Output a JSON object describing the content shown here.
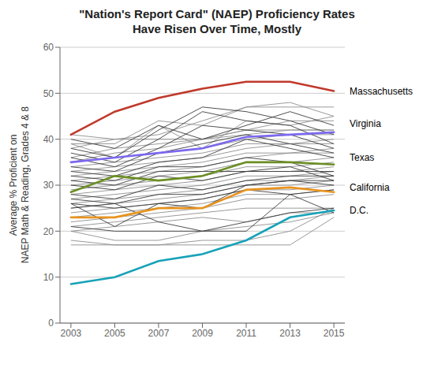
{
  "chart_data": {
    "type": "line",
    "title": "\"Nation's Report Card\" (NAEP) Proficiency Rates\nHave Risen Over Time, Mostly",
    "y_label": "Average % Proficient on\nNAEP Math & Reading, Grades 4 & 8",
    "x": [
      2003,
      2005,
      2007,
      2009,
      2011,
      2013,
      2015
    ],
    "xlim": [
      2002.5,
      2015.5
    ],
    "xticks": [
      2003,
      2005,
      2007,
      2009,
      2011,
      2013,
      2015
    ],
    "ylim": [
      0,
      60
    ],
    "yticks": [
      0,
      10,
      20,
      30,
      40,
      50,
      60
    ],
    "grid": true,
    "series": [
      {
        "color": "#888888",
        "values": [
          41,
          40,
          40,
          40,
          42,
          42,
          42
        ]
      },
      {
        "color": "#888888",
        "values": [
          39,
          39,
          44,
          43,
          47,
          47,
          47
        ]
      },
      {
        "color": "#888888",
        "values": [
          38,
          40,
          41,
          44,
          47,
          48,
          45
        ]
      },
      {
        "color": "#888888",
        "values": [
          39,
          36,
          43,
          38,
          44,
          43,
          45
        ]
      },
      {
        "color": "#888888",
        "values": [
          36,
          38,
          39,
          40,
          42,
          44,
          44
        ]
      },
      {
        "color": "#888888",
        "values": [
          35,
          37,
          38,
          40,
          41,
          42,
          42
        ]
      },
      {
        "color": "#888888",
        "values": [
          35,
          36,
          37,
          38,
          40,
          41,
          41
        ]
      },
      {
        "color": "#888888",
        "values": [
          34,
          35,
          36,
          37,
          39,
          39,
          40
        ]
      },
      {
        "color": "#888888",
        "values": [
          33,
          34,
          35,
          36,
          38,
          39,
          39
        ]
      },
      {
        "color": "#888888",
        "values": [
          32,
          33,
          34,
          35,
          37,
          37,
          38
        ]
      },
      {
        "color": "#888888",
        "values": [
          31,
          32,
          33,
          34,
          36,
          37,
          37
        ]
      },
      {
        "color": "#888888",
        "values": [
          30,
          31,
          32,
          33,
          35,
          35,
          36
        ]
      },
      {
        "color": "#888888",
        "values": [
          29,
          30,
          31,
          32,
          34,
          34,
          35
        ]
      },
      {
        "color": "#888888",
        "values": [
          28,
          29,
          30,
          31,
          33,
          33,
          34
        ]
      },
      {
        "color": "#888888",
        "values": [
          27,
          28,
          29,
          30,
          32,
          32,
          33
        ]
      },
      {
        "color": "#888888",
        "values": [
          26,
          27,
          28,
          29,
          31,
          31,
          32
        ]
      },
      {
        "color": "#888888",
        "values": [
          25,
          26,
          27,
          28,
          30,
          30,
          31
        ]
      },
      {
        "color": "#888888",
        "values": [
          24,
          25,
          26,
          27,
          29,
          29,
          30
        ]
      },
      {
        "color": "#888888",
        "values": [
          23,
          24,
          25,
          26,
          28,
          28,
          29
        ]
      },
      {
        "color": "#888888",
        "values": [
          22,
          23,
          24,
          25,
          27,
          27,
          28
        ]
      },
      {
        "color": "#888888",
        "values": [
          21,
          22,
          23,
          24,
          25,
          25,
          25
        ]
      },
      {
        "color": "#888888",
        "values": [
          20,
          21,
          22,
          23,
          22,
          24,
          24
        ]
      },
      {
        "color": "#888888",
        "values": [
          20,
          18,
          18,
          20,
          21,
          22,
          24
        ]
      },
      {
        "color": "#888888",
        "values": [
          18,
          17,
          17,
          18,
          18,
          20,
          25
        ]
      },
      {
        "color": "#888888",
        "values": [
          17,
          17,
          17,
          17,
          17,
          17,
          23
        ]
      },
      {
        "color": "#333333",
        "values": [
          21,
          20,
          20,
          20,
          20,
          28,
          24
        ]
      },
      {
        "color": "#333333",
        "values": [
          25,
          26,
          22,
          20,
          22,
          24,
          25
        ]
      },
      {
        "color": "#333333",
        "values": [
          26,
          21,
          26,
          25,
          30,
          31,
          31
        ]
      },
      {
        "color": "#333333",
        "values": [
          26,
          25,
          26,
          27,
          29,
          28,
          29
        ]
      },
      {
        "color": "#333333",
        "values": [
          27,
          26,
          28,
          28,
          30,
          31,
          30
        ]
      },
      {
        "color": "#333333",
        "values": [
          28,
          27,
          30,
          29,
          31,
          32,
          32
        ]
      },
      {
        "color": "#333333",
        "values": [
          30,
          29,
          32,
          31,
          33,
          33,
          33
        ]
      },
      {
        "color": "#333333",
        "values": [
          31,
          30,
          33,
          33,
          33,
          34,
          31
        ]
      },
      {
        "color": "#333333",
        "values": [
          32,
          31,
          34,
          34,
          36,
          35,
          32
        ]
      },
      {
        "color": "#333333",
        "values": [
          33,
          32,
          35,
          36,
          40,
          38,
          36
        ]
      },
      {
        "color": "#333333",
        "values": [
          34,
          33,
          37,
          39,
          41,
          39,
          37
        ]
      },
      {
        "color": "#333333",
        "values": [
          36,
          34,
          38,
          43,
          42,
          41,
          38
        ]
      },
      {
        "color": "#333333",
        "values": [
          37,
          35,
          40,
          46,
          44,
          43,
          39
        ]
      },
      {
        "color": "#333333",
        "values": [
          38,
          36,
          42,
          47,
          46,
          44,
          41
        ]
      },
      {
        "color": "#333333",
        "values": [
          40,
          38,
          43,
          40,
          43,
          46,
          43
        ]
      },
      {
        "name": "Massachusetts",
        "color": "#c0392b",
        "values": [
          41,
          46,
          49,
          51,
          52.5,
          52.5,
          50.5
        ],
        "label_y": 50.5
      },
      {
        "name": "Virginia",
        "color": "#7b68ee",
        "values": [
          35,
          36,
          37,
          38,
          40.5,
          41,
          41.5
        ],
        "label_y": 43.5
      },
      {
        "name": "Texas",
        "color": "#6b8e23",
        "values": [
          28.5,
          32,
          31,
          32,
          35,
          35,
          34.5
        ],
        "label_y": 36.0
      },
      {
        "name": "California",
        "color": "#e8931e",
        "values": [
          23,
          23,
          25,
          25,
          29,
          29.5,
          28.5
        ],
        "label_y": 29.5
      },
      {
        "name": "D.C.",
        "color": "#17a2b8",
        "values": [
          8.5,
          10,
          13.5,
          15,
          18,
          23,
          24.5
        ],
        "label_y": 24.5
      }
    ]
  }
}
